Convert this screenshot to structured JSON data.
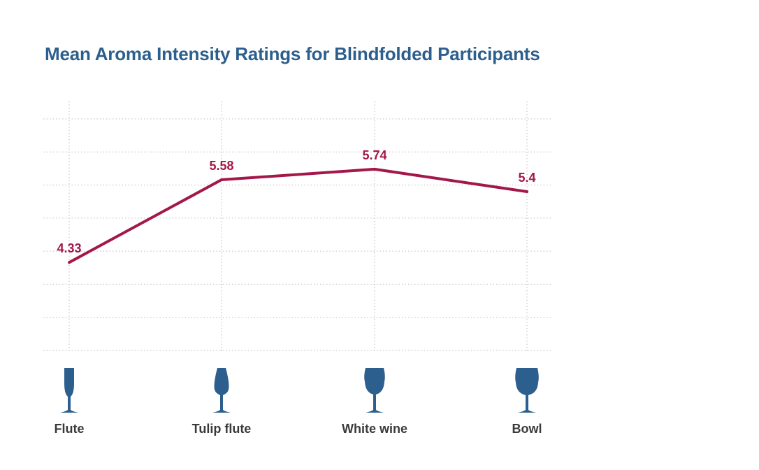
{
  "chart_data": {
    "type": "line",
    "title": "Mean Aroma Intensity Ratings for Blindfolded Participants",
    "categories": [
      "Flute",
      "Tulip flute",
      "White wine",
      "Bowl"
    ],
    "icons": [
      "flute-glass-icon",
      "tulip-flute-glass-icon",
      "white-wine-glass-icon",
      "bowl-glass-icon"
    ],
    "series": [
      {
        "values": [
          4.33,
          5.58,
          5.74,
          5.4
        ],
        "labels": [
          "4.33",
          "5.58",
          "5.74",
          "5.4"
        ],
        "color": "#a3174a"
      }
    ],
    "ylim": [
      3,
      6.5
    ],
    "grid": true,
    "icon_color": "#2c5f8d"
  }
}
